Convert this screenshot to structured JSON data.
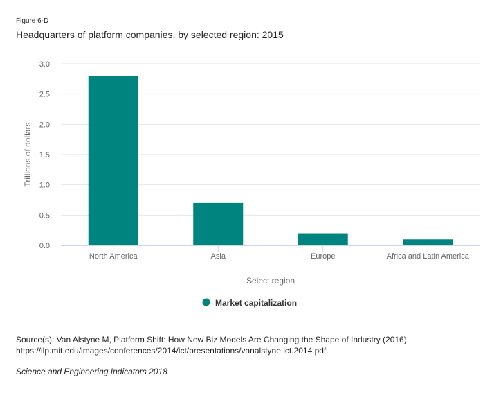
{
  "figure_label": "Figure 6-D",
  "chart_data": {
    "type": "bar",
    "title": "Headquarters of platform companies, by selected region: 2015",
    "categories": [
      "North America",
      "Asia",
      "Europe",
      "Africa and Latin America"
    ],
    "series": [
      {
        "name": "Market capitalization",
        "values": [
          2.8,
          0.7,
          0.2,
          0.1
        ]
      }
    ],
    "xlabel": "Select region",
    "ylabel": "Trillions of dollars",
    "ylim": [
      0,
      3.0
    ],
    "yticks": [
      "0.0",
      "0.5",
      "1.0",
      "1.5",
      "2.0",
      "2.5",
      "3.0"
    ],
    "grid": true,
    "legend": "bottom-center",
    "color": "#00847f"
  },
  "source_line1": "Source(s): Van Alstyne M, Platform Shift: How New Biz Models Are Changing the Shape of Industry (2016),",
  "source_line2": "https://ilp.mit.edu/images/conferences/2014/ict/presentations/vanalstyne.ict.2014.pdf.",
  "publication": "Science and Engineering Indicators 2018"
}
